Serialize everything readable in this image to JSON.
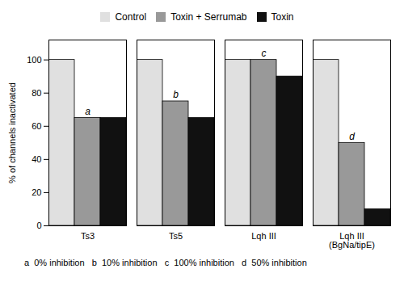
{
  "chart_data": {
    "type": "bar",
    "ylabel": "% of channels inactivated",
    "categories": [
      "Ts3",
      "Ts5",
      "Lqh III",
      "Lqh III\n(BgNa/tipE)"
    ],
    "series": [
      {
        "name": "Control",
        "color": "#e0e0e0",
        "values": [
          100,
          100,
          100,
          100
        ]
      },
      {
        "name": "Toxin + Serrumab",
        "color": "#999999",
        "values": [
          65,
          75,
          100,
          50
        ]
      },
      {
        "name": "Toxin",
        "color": "#111111",
        "values": [
          65,
          65,
          90,
          10
        ]
      }
    ],
    "annotations": [
      {
        "text": "a",
        "category": "Ts3",
        "series": "Toxin + Serrumab"
      },
      {
        "text": "b",
        "category": "Ts5",
        "series": "Toxin + Serrumab"
      },
      {
        "text": "c",
        "category": "Lqh III",
        "series": "Toxin + Serrumab"
      },
      {
        "text": "d",
        "category": "Lqh III\n(BgNa/tipE)",
        "series": "Toxin + Serrumab"
      }
    ],
    "caption": "a  0% inhibition   b  10% inhibition   c  100% inhibition   d  50% inhibition",
    "ylim": [
      0,
      112
    ],
    "yticks": [
      0,
      20,
      40,
      60,
      80,
      100
    ],
    "legend": "top",
    "grid": false
  }
}
